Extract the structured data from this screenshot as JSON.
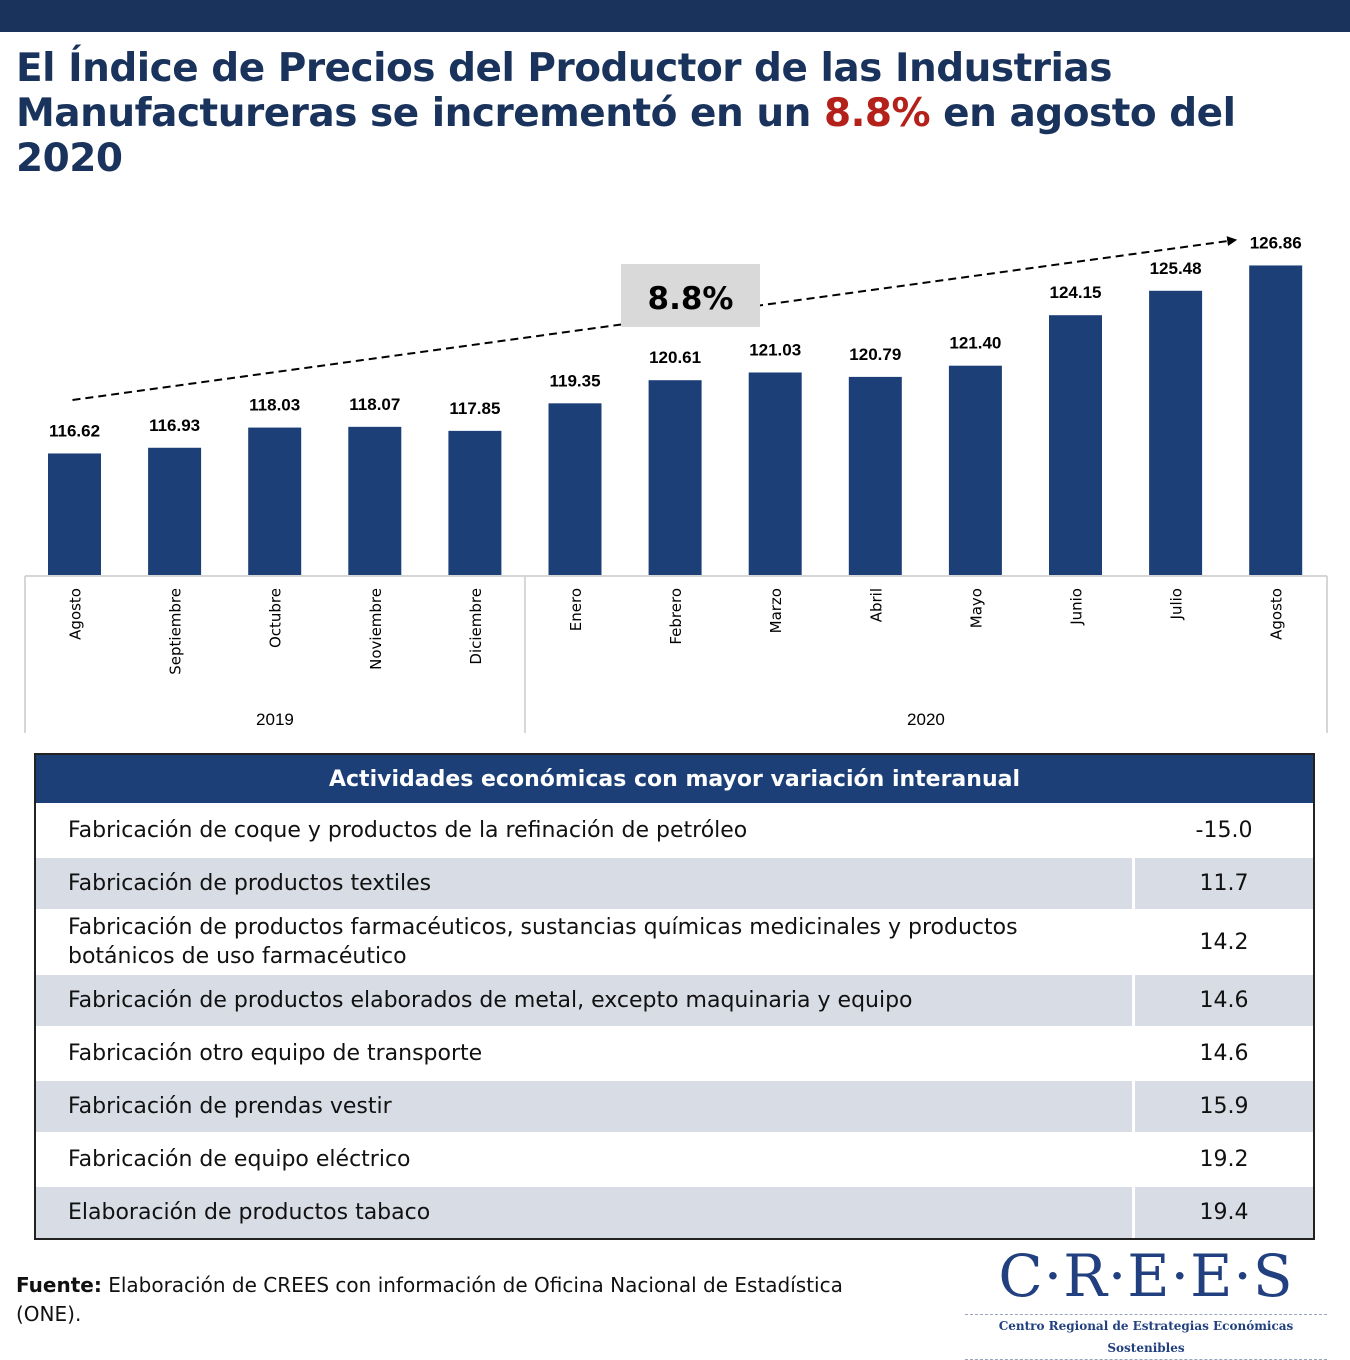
{
  "header": {
    "title_part1": "El Índice de Precios del Productor de las Industrias Manufactureras se incrementó en un ",
    "title_highlight": "8.8%",
    "title_part2": " en agosto del 2020",
    "accent_color": "#1a335c",
    "highlight_color": "#b3211a"
  },
  "chart_data": {
    "type": "bar",
    "title": "",
    "xlabel": "",
    "ylabel": "",
    "ylim": [
      110,
      128
    ],
    "grid": false,
    "bar_color": "#1c3f78",
    "categories": [
      "Agosto",
      "Septiembre",
      "Octubre",
      "Noviembre",
      "Diciembre",
      "Enero",
      "Febrero",
      "Marzo",
      "Abril",
      "Mayo",
      "Junio",
      "Julio",
      "Agosto"
    ],
    "groups": [
      {
        "label": "2019",
        "count": 5
      },
      {
        "label": "2020",
        "count": 8
      }
    ],
    "values": [
      116.62,
      116.93,
      118.03,
      118.07,
      117.85,
      119.35,
      120.61,
      121.03,
      120.79,
      121.4,
      124.15,
      125.48,
      126.86
    ],
    "value_labels": [
      "116.62",
      "116.93",
      "118.03",
      "118.07",
      "117.85",
      "119.35",
      "120.61",
      "121.03",
      "120.79",
      "121.40",
      "124.15",
      "125.48",
      "126.86"
    ],
    "annotation": {
      "label": "8.8%",
      "from_index": 0,
      "to_index": 12,
      "style": "dashed-arrow"
    }
  },
  "table": {
    "header": "Actividades económicas con mayor variación interanual",
    "rows": [
      {
        "activity": "Fabricación de coque y productos de la refinación de petróleo",
        "value": "-15.0"
      },
      {
        "activity": "Fabricación de productos textiles",
        "value": "11.7"
      },
      {
        "activity": "Fabricación de productos farmacéuticos, sustancias químicas medicinales y productos botánicos de uso farmacéutico",
        "value": "14.2"
      },
      {
        "activity": "Fabricación de productos elaborados de metal, excepto maquinaria y equipo",
        "value": "14.6"
      },
      {
        "activity": "Fabricación otro equipo de transporte",
        "value": "14.6"
      },
      {
        "activity": "Fabricación de prendas vestir",
        "value": "15.9"
      },
      {
        "activity": "Fabricación de equipo eléctrico",
        "value": "19.2"
      },
      {
        "activity": "Elaboración de productos tabaco",
        "value": "19.4"
      }
    ]
  },
  "footer": {
    "source_label": "Fuente:",
    "source_text": " Elaboración de CREES con información de Oficina Nacional de Estadística (ONE).",
    "logo_text": "C·R·E·E·S",
    "logo_subtitle": "Centro Regional de Estrategias Económicas Sostenibles"
  }
}
